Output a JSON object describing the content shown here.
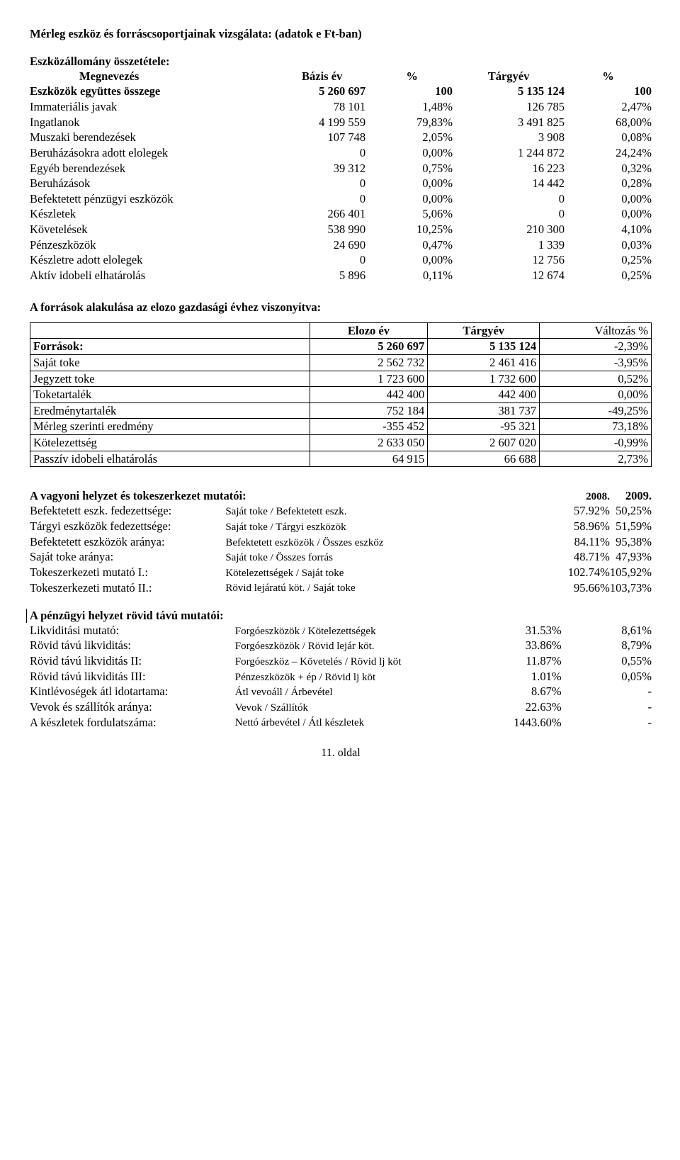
{
  "title": "Mérleg eszköz és forráscsoportjainak vizsgálata: (adatok e Ft-ban)",
  "asset_section": {
    "subtitle": "Eszközállomány összetétele:",
    "headers": {
      "name": "Megnevezés",
      "base": "Bázis év",
      "pct1": "%",
      "target": "Tárgyév",
      "pct2": "%"
    },
    "rows": [
      {
        "name": "Eszközök együttes összege",
        "base": "5 260 697",
        "pct1": "100",
        "target": "5 135 124",
        "pct2": "100",
        "bold": true
      },
      {
        "name": "Immateriális javak",
        "base": "78 101",
        "pct1": "1,48%",
        "target": "126 785",
        "pct2": "2,47%"
      },
      {
        "name": "Ingatlanok",
        "base": "4 199 559",
        "pct1": "79,83%",
        "target": "3 491 825",
        "pct2": "68,00%"
      },
      {
        "name": "Muszaki berendezések",
        "base": "107 748",
        "pct1": "2,05%",
        "target": "3 908",
        "pct2": "0,08%"
      },
      {
        "name": "Beruházásokra adott elolegek",
        "base": "0",
        "pct1": "0,00%",
        "target": "1 244 872",
        "pct2": "24,24%"
      },
      {
        "name": "Egyéb berendezések",
        "base": "39 312",
        "pct1": "0,75%",
        "target": "16 223",
        "pct2": "0,32%"
      },
      {
        "name": "Beruházások",
        "base": "0",
        "pct1": "0,00%",
        "target": "14 442",
        "pct2": "0,28%"
      },
      {
        "name": "Befektetett pénzügyi eszközök",
        "base": "0",
        "pct1": "0,00%",
        "target": "0",
        "pct2": "0,00%"
      },
      {
        "name": "Készletek",
        "base": "266 401",
        "pct1": "5,06%",
        "target": "0",
        "pct2": "0,00%"
      },
      {
        "name": "Követelések",
        "base": "538 990",
        "pct1": "10,25%",
        "target": "210 300",
        "pct2": "4,10%"
      },
      {
        "name": "Pénzeszközök",
        "base": "24 690",
        "pct1": "0,47%",
        "target": "1 339",
        "pct2": "0,03%"
      },
      {
        "name": "Készletre adott elolegek",
        "base": "0",
        "pct1": "0,00%",
        "target": "12 756",
        "pct2": "0,25%"
      },
      {
        "name": "Aktív idobeli elhatárolás",
        "base": "5 896",
        "pct1": "0,11%",
        "target": "12 674",
        "pct2": "0,25%"
      }
    ]
  },
  "sources_section": {
    "subtitle": "A források alakulása az elozo gazdasági évhez viszonyítva:",
    "headers": {
      "name": "",
      "prev": "Elozo év",
      "target": "Tárgyév",
      "chg": "Változás %"
    },
    "rows": [
      {
        "name": "Források:",
        "prev": "5 260 697",
        "target": "5 135 124",
        "chg": "-2,39%",
        "bold": true
      },
      {
        "name": "Saját toke",
        "prev": "2 562 732",
        "target": "2 461 416",
        "chg": "-3,95%"
      },
      {
        "name": "Jegyzett toke",
        "prev": "1 723 600",
        "target": "1 732 600",
        "chg": "0,52%"
      },
      {
        "name": "Toketartalék",
        "prev": "442 400",
        "target": "442 400",
        "chg": "0,00%"
      },
      {
        "name": "Eredménytartalék",
        "prev": "752 184",
        "target": "381 737",
        "chg": "-49,25%"
      },
      {
        "name": "Mérleg szerinti eredmény",
        "prev": "-355 452",
        "target": "-95 321",
        "chg": "73,18%"
      },
      {
        "name": "Kötelezettség",
        "prev": "2 633 050",
        "target": "2 607 020",
        "chg": "-0,99%"
      },
      {
        "name": "Passzív idobeli elhatárolás",
        "prev": "64 915",
        "target": "66 688",
        "chg": "2,73%"
      }
    ]
  },
  "ind1": {
    "title": "A vagyoni helyzet és tokeszerkezet mutatói:",
    "y1": "2008.",
    "y2": "2009.",
    "rows": [
      {
        "name": "Befektetett eszk. fedezettsége:",
        "formula": "Saját toke / Befektetett eszk.",
        "v1": "57.92%",
        "v2": "50,25%"
      },
      {
        "name": "Tárgyi eszközök fedezettsége:",
        "formula": "Saját toke / Tárgyi eszközök",
        "v1": "58.96%",
        "v2": "51,59%"
      },
      {
        "name": "Befektetett eszközök aránya:",
        "formula": "Befektetett eszközök / Összes eszköz",
        "v1": "84.11%",
        "v2": "95,38%"
      },
      {
        "name": "Saját toke aránya:",
        "formula": "Saját toke / Összes forrás",
        "v1": "48.71%",
        "v2": "47,93%"
      },
      {
        "name": "Tokeszerkezeti mutató I.:",
        "formula": "Kötelezettségek / Saját toke",
        "v1": "102.74%",
        "v2": "105,92%"
      },
      {
        "name": "Tokeszerkezeti mutató II.:",
        "formula": "Rövid lejáratú köt. / Saját toke",
        "v1": "95.66%",
        "v2": "103,73%"
      }
    ]
  },
  "ind2": {
    "title": "A pénzügyi helyzet rövid távú mutatói:",
    "rows": [
      {
        "name": "Likviditási mutató:",
        "formula": "Forgóeszközök / Kötelezettségek",
        "v1": "31.53%",
        "v2": "8,61%"
      },
      {
        "name": "Rövid távú likviditás:",
        "formula": "Forgóeszközök / Rövid lejár köt.",
        "v1": "33.86%",
        "v2": "8,79%"
      },
      {
        "name": "Rövid távú likviditás II:",
        "formula": "Forgóeszköz – Követelés / Rövid lj köt",
        "v1": "11.87%",
        "v2": "0,55%"
      },
      {
        "name": "Rövid távú likviditás III:",
        "formula": "Pénzeszközök + ép / Rövid lj köt",
        "v1": "1.01%",
        "v2": "0,05%"
      },
      {
        "name": "Kintlévoségek átl idotartama:",
        "formula": "Átl vevoáll / Árbevétel",
        "v1": "8.67%",
        "v2": "-"
      },
      {
        "name": "Vevok és szállítók aránya:",
        "formula": "Vevok / Szállítók",
        "v1": "22.63%",
        "v2": "-"
      },
      {
        "name": "A készletek fordulatszáma:",
        "formula": "Nettó árbevétel / Átl készletek",
        "v1": "1443.60%",
        "v2": "-"
      }
    ]
  },
  "footer": "11. oldal"
}
